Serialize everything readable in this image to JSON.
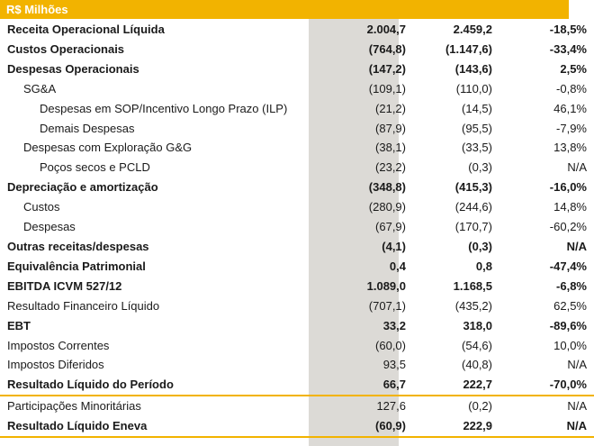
{
  "header": {
    "title": "R$ Milhões"
  },
  "rows": [
    {
      "label": "Receita Operacional Líquida",
      "v1": "2.004,7",
      "v2": "2.459,2",
      "v3": "-18,5%",
      "bold": true,
      "level": 0
    },
    {
      "label": "Custos Operacionais",
      "v1": "(764,8)",
      "v2": "(1.147,6)",
      "v3": "-33,4%",
      "bold": true,
      "level": 0
    },
    {
      "label": "Despesas Operacionais",
      "v1": "(147,2)",
      "v2": "(143,6)",
      "v3": "2,5%",
      "bold": true,
      "level": 0
    },
    {
      "label": "SG&A",
      "v1": "(109,1)",
      "v2": "(110,0)",
      "v3": "-0,8%",
      "bold": false,
      "level": 1
    },
    {
      "label": "Despesas em SOP/Incentivo Longo Prazo (ILP)",
      "v1": "(21,2)",
      "v2": "(14,5)",
      "v3": "46,1%",
      "bold": false,
      "level": 2
    },
    {
      "label": "Demais Despesas",
      "v1": "(87,9)",
      "v2": "(95,5)",
      "v3": "-7,9%",
      "bold": false,
      "level": 2
    },
    {
      "label": "Despesas com Exploração G&G",
      "v1": "(38,1)",
      "v2": "(33,5)",
      "v3": "13,8%",
      "bold": false,
      "level": 1
    },
    {
      "label": "Poços secos e PCLD",
      "v1": "(23,2)",
      "v2": "(0,3)",
      "v3": "N/A",
      "bold": false,
      "level": 2
    },
    {
      "label": "Depreciação e amortização",
      "v1": "(348,8)",
      "v2": "(415,3)",
      "v3": "-16,0%",
      "bold": true,
      "level": 0
    },
    {
      "label": "Custos",
      "v1": "(280,9)",
      "v2": "(244,6)",
      "v3": "14,8%",
      "bold": false,
      "level": 1
    },
    {
      "label": "Despesas",
      "v1": "(67,9)",
      "v2": "(170,7)",
      "v3": "-60,2%",
      "bold": false,
      "level": 1
    },
    {
      "label": "Outras receitas/despesas",
      "v1": "(4,1)",
      "v2": "(0,3)",
      "v3": "N/A",
      "bold": true,
      "level": 0
    },
    {
      "label": "Equivalência Patrimonial",
      "v1": "0,4",
      "v2": "0,8",
      "v3": "-47,4%",
      "bold": true,
      "level": 0
    },
    {
      "label": "EBITDA ICVM 527/12",
      "v1": "1.089,0",
      "v2": "1.168,5",
      "v3": "-6,8%",
      "bold": true,
      "level": 0
    },
    {
      "label": "Resultado Financeiro Líquido",
      "v1": "(707,1)",
      "v2": "(435,2)",
      "v3": "62,5%",
      "bold": false,
      "level": 0
    },
    {
      "label": "EBT",
      "v1": "33,2",
      "v2": "318,0",
      "v3": "-89,6%",
      "bold": true,
      "level": 0
    },
    {
      "label": "Impostos Correntes",
      "v1": "(60,0)",
      "v2": "(54,6)",
      "v3": "10,0%",
      "bold": false,
      "level": 0
    },
    {
      "label": "Impostos Diferidos",
      "v1": "93,5",
      "v2": "(40,8)",
      "v3": "N/A",
      "bold": false,
      "level": 0
    },
    {
      "label": "Resultado Líquido do Período",
      "v1": "66,7",
      "v2": "222,7",
      "v3": "-70,0%",
      "bold": true,
      "level": 0,
      "separator": true
    },
    {
      "label": "Participações Minoritárias",
      "v1": "127,6",
      "v2": "(0,2)",
      "v3": "N/A",
      "bold": false,
      "level": 0
    },
    {
      "label": "Resultado Líquido Eneva",
      "v1": "(60,9)",
      "v2": "222,9",
      "v3": "N/A",
      "bold": true,
      "level": 0,
      "separator": true
    }
  ],
  "colors": {
    "accent": "#f2b300",
    "shade": "#dcdad6",
    "text": "#1a1a1a"
  }
}
